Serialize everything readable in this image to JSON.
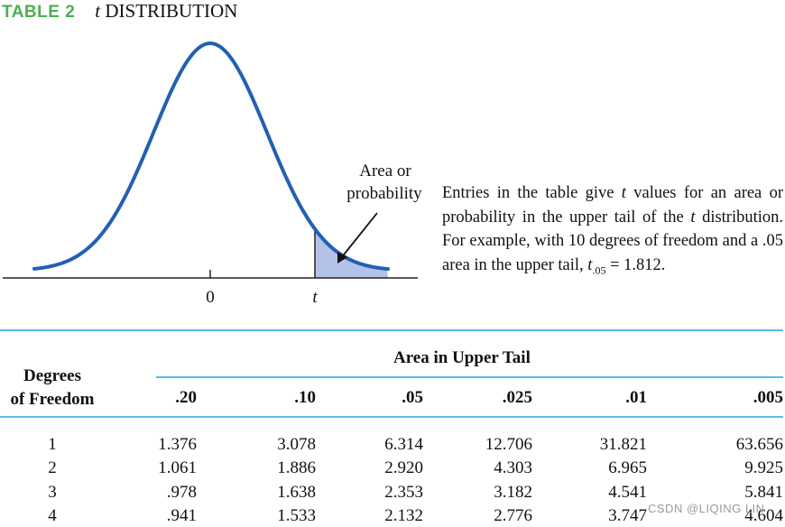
{
  "title": {
    "tag": "TABLE 2",
    "name_italic": "t",
    "name_rest": " DISTRIBUTION"
  },
  "figure": {
    "area_label_line1": "Area or",
    "area_label_line2": "probability",
    "zero_label": "0",
    "t_label": "t",
    "curve_color": "#2360b3",
    "shade_color": "#b3c2e6"
  },
  "description": {
    "part1": "Entries in the table give ",
    "italic1": "t",
    "part2": " values for an area or probability in the upper tail of the ",
    "italic2": "t",
    "part3": " distribution. For example, with 10 degrees of freedom and a .05 area in the upper tail, ",
    "sym": "t",
    "sub": ".05",
    "part4": " = 1.812."
  },
  "table": {
    "area_header": "Area in Upper Tail",
    "dof_header_line1": "Degrees",
    "dof_header_line2": "of Freedom",
    "columns": [
      ".20",
      ".10",
      ".05",
      ".025",
      ".01",
      ".005"
    ],
    "rows": [
      {
        "df": "1",
        "values": [
          "1.376",
          "3.078",
          "6.314",
          "12.706",
          "31.821",
          "63.656"
        ]
      },
      {
        "df": "2",
        "values": [
          "1.061",
          "1.886",
          "2.920",
          "4.303",
          "6.965",
          "9.925"
        ]
      },
      {
        "df": "3",
        "values": [
          ".978",
          "1.638",
          "2.353",
          "3.182",
          "4.541",
          "5.841"
        ]
      },
      {
        "df": "4",
        "values": [
          ".941",
          "1.533",
          "2.132",
          "2.776",
          "3.747",
          "4.604"
        ]
      }
    ]
  },
  "watermark": "CSDN @LIQING LIN"
}
